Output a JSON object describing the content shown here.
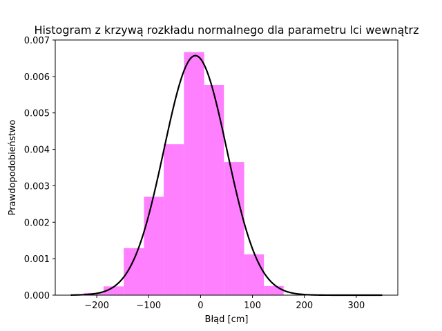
{
  "chart_data": {
    "type": "bar",
    "title": "Histogram z krzywą rozkładu normalnego dla parametru lci wewnątrz",
    "xlabel": "Błąd [cm]",
    "ylabel": "Prawdopodobieństwo",
    "xlim": [
      -280,
      380
    ],
    "ylim": [
      0,
      0.007
    ],
    "xticks": [
      -200,
      -100,
      0,
      100,
      200,
      300
    ],
    "xtick_labels": [
      "−200",
      "−100",
      "0",
      "100",
      "200",
      "300"
    ],
    "yticks": [
      0,
      0.001,
      0.002,
      0.003,
      0.004,
      0.005,
      0.006,
      0.007
    ],
    "ytick_labels": [
      "0.000",
      "0.001",
      "0.002",
      "0.003",
      "0.004",
      "0.005",
      "0.006",
      "0.007"
    ],
    "grid": false,
    "histogram": {
      "color": "#ff80ff",
      "bins": [
        {
          "x0": -225,
          "x1": -187,
          "density": 6e-05
        },
        {
          "x0": -187,
          "x1": -148,
          "density": 0.00024
        },
        {
          "x0": -148,
          "x1": -109,
          "density": 0.00129
        },
        {
          "x0": -109,
          "x1": -71,
          "density": 0.0027
        },
        {
          "x0": -71,
          "x1": -32,
          "density": 0.00414
        },
        {
          "x0": -32,
          "x1": 7,
          "density": 0.00667
        },
        {
          "x0": 7,
          "x1": 45,
          "density": 0.00577
        },
        {
          "x0": 45,
          "x1": 84,
          "density": 0.00365
        },
        {
          "x0": 84,
          "x1": 122,
          "density": 0.00112
        },
        {
          "x0": 122,
          "x1": 160,
          "density": 0.00025
        }
      ]
    },
    "curve": {
      "type": "normal-pdf",
      "color": "#000000",
      "mean": -10,
      "std": 60.7,
      "x_range": [
        -250,
        350
      ]
    }
  }
}
